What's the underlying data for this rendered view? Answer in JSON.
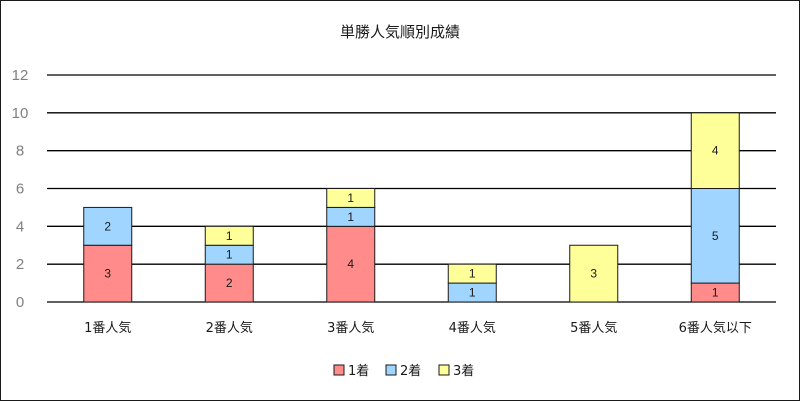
{
  "chart_data": {
    "type": "bar",
    "stacked": true,
    "title": "単勝人気順別成績",
    "categories": [
      "1番人気",
      "2番人気",
      "3番人気",
      "4番人気",
      "5番人気",
      "6番人気以下"
    ],
    "series": [
      {
        "name": "1着",
        "color": "#ff8b8b",
        "values": [
          3,
          2,
          4,
          0,
          0,
          1
        ]
      },
      {
        "name": "2着",
        "color": "#9fd5ff",
        "values": [
          2,
          1,
          1,
          1,
          0,
          5
        ]
      },
      {
        "name": "3着",
        "color": "#ffff99",
        "values": [
          0,
          1,
          1,
          1,
          3,
          4
        ]
      }
    ],
    "ylim": [
      0,
      12
    ],
    "yticks": [
      0,
      2,
      4,
      6,
      8,
      10,
      12
    ],
    "grid": true,
    "legend_position": "bottom",
    "xlabel": "",
    "ylabel": ""
  }
}
